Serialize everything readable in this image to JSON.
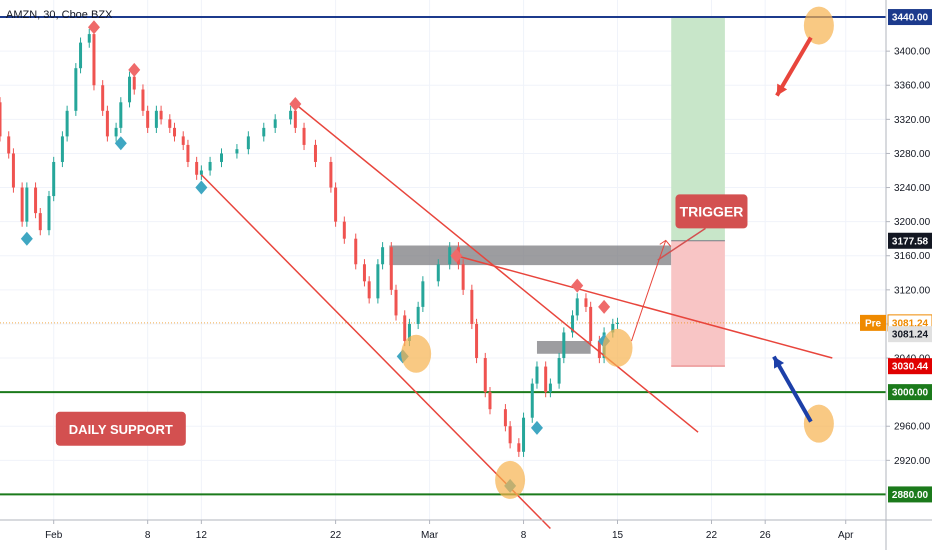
{
  "header": {
    "title": "AMZN, 30, Cboe BZX"
  },
  "chart_data": {
    "type": "candlestick",
    "y_range": [
      2850,
      3460
    ],
    "x_date_range": [
      "2021-01-28",
      "2021-04-04"
    ],
    "x_ticks": [
      {
        "label": "Feb",
        "date": "2021-02-01"
      },
      {
        "label": "8",
        "date": "2021-02-08"
      },
      {
        "label": "12",
        "date": "2021-02-12"
      },
      {
        "label": "22",
        "date": "2021-02-22"
      },
      {
        "label": "Mar",
        "date": "2021-03-01"
      },
      {
        "label": "8",
        "date": "2021-03-08"
      },
      {
        "label": "15",
        "date": "2021-03-15"
      },
      {
        "label": "22",
        "date": "2021-03-22"
      },
      {
        "label": "26",
        "date": "2021-03-26"
      },
      {
        "label": "Apr",
        "date": "2021-04-01"
      }
    ],
    "y_ticks": [
      3400,
      3360,
      3320,
      3280,
      3240,
      3200,
      3160,
      3120,
      3080,
      3040,
      2960,
      2920
    ],
    "y_tick_labels": [
      "3400.00",
      "3360.00",
      "3320.00",
      "3280.00",
      "3240.00",
      "3200.00",
      "3160.00",
      "3120.00",
      "3080.00",
      "3040.00",
      "2960.00",
      "2920.00"
    ],
    "price_tags": [
      {
        "label": "3440.00",
        "value": 3440,
        "bg": "#1c3a8c",
        "fg": "#ffffff"
      },
      {
        "label": "3177.58",
        "value": 3177.58,
        "bg": "#131722",
        "fg": "#ffffff"
      },
      {
        "label": "3081.24",
        "value": 3081.24,
        "bg": "#ffffff",
        "fg": "#ef8a00",
        "border": "#ef8a00",
        "prefix": "Pre"
      },
      {
        "label": "3081.24",
        "value": 3068,
        "bg": "#e0e0e0",
        "fg": "#131722"
      },
      {
        "label": "3030.44",
        "value": 3030.44,
        "bg": "#e00000",
        "fg": "#ffffff"
      },
      {
        "label": "3000.00",
        "value": 3000,
        "bg": "#1b7a1b",
        "fg": "#ffffff"
      },
      {
        "label": "2880.00",
        "value": 2880,
        "bg": "#1b7a1b",
        "fg": "#ffffff"
      }
    ],
    "price_path": [
      [
        "2021-01-28",
        3340
      ],
      [
        "2021-01-28",
        3300
      ],
      [
        "2021-01-29",
        3280
      ],
      [
        "2021-01-29",
        3240
      ],
      [
        "2021-01-30",
        3200
      ],
      [
        "2021-01-30",
        3240
      ],
      [
        "2021-01-31",
        3210
      ],
      [
        "2021-01-31",
        3190
      ],
      [
        "2021-02-01",
        3230
      ],
      [
        "2021-02-01",
        3270
      ],
      [
        "2021-02-02",
        3300
      ],
      [
        "2021-02-02",
        3330
      ],
      [
        "2021-02-03",
        3380
      ],
      [
        "2021-02-03",
        3410
      ],
      [
        "2021-02-04",
        3420
      ],
      [
        "2021-02-04",
        3360
      ],
      [
        "2021-02-05",
        3330
      ],
      [
        "2021-02-05",
        3300
      ],
      [
        "2021-02-06",
        3310
      ],
      [
        "2021-02-06",
        3340
      ],
      [
        "2021-02-07",
        3370
      ],
      [
        "2021-02-07",
        3355
      ],
      [
        "2021-02-08",
        3330
      ],
      [
        "2021-02-08",
        3310
      ],
      [
        "2021-02-09",
        3330
      ],
      [
        "2021-02-09",
        3320
      ],
      [
        "2021-02-10",
        3310
      ],
      [
        "2021-02-10",
        3300
      ],
      [
        "2021-02-11",
        3290
      ],
      [
        "2021-02-11",
        3270
      ],
      [
        "2021-02-12",
        3255
      ],
      [
        "2021-02-12",
        3260
      ],
      [
        "2021-02-13",
        3270
      ],
      [
        "2021-02-14",
        3280
      ],
      [
        "2021-02-15",
        3285
      ],
      [
        "2021-02-16",
        3300
      ],
      [
        "2021-02-17",
        3310
      ],
      [
        "2021-02-18",
        3320
      ],
      [
        "2021-02-19",
        3330
      ],
      [
        "2021-02-19",
        3310
      ],
      [
        "2021-02-20",
        3290
      ],
      [
        "2021-02-21",
        3270
      ],
      [
        "2021-02-22",
        3240
      ],
      [
        "2021-02-22",
        3200
      ],
      [
        "2021-02-23",
        3180
      ],
      [
        "2021-02-24",
        3150
      ],
      [
        "2021-02-24",
        3130
      ],
      [
        "2021-02-25",
        3110
      ],
      [
        "2021-02-25",
        3150
      ],
      [
        "2021-02-26",
        3170
      ],
      [
        "2021-02-26",
        3120
      ],
      [
        "2021-02-27",
        3090
      ],
      [
        "2021-02-27",
        3060
      ],
      [
        "2021-02-28",
        3080
      ],
      [
        "2021-02-28",
        3100
      ],
      [
        "2021-03-01",
        3130
      ],
      [
        "2021-03-02",
        3150
      ],
      [
        "2021-03-03",
        3170
      ],
      [
        "2021-03-03",
        3150
      ],
      [
        "2021-03-04",
        3120
      ],
      [
        "2021-03-04",
        3080
      ],
      [
        "2021-03-05",
        3040
      ],
      [
        "2021-03-05",
        3000
      ],
      [
        "2021-03-06",
        2980
      ],
      [
        "2021-03-07",
        2960
      ],
      [
        "2021-03-07",
        2940
      ],
      [
        "2021-03-08",
        2930
      ],
      [
        "2021-03-08",
        2970
      ],
      [
        "2021-03-09",
        3010
      ],
      [
        "2021-03-09",
        3030
      ],
      [
        "2021-03-10",
        3000
      ],
      [
        "2021-03-10",
        3010
      ],
      [
        "2021-03-11",
        3040
      ],
      [
        "2021-03-11",
        3070
      ],
      [
        "2021-03-12",
        3090
      ],
      [
        "2021-03-12",
        3110
      ],
      [
        "2021-03-13",
        3100
      ],
      [
        "2021-03-13",
        3060
      ],
      [
        "2021-03-14",
        3040
      ],
      [
        "2021-03-14",
        3070
      ],
      [
        "2021-03-15",
        3080
      ],
      [
        "2021-03-15",
        3081.24
      ]
    ],
    "diamonds_top": [
      [
        "2021-02-04",
        3428
      ],
      [
        "2021-02-07",
        3378
      ],
      [
        "2021-02-19",
        3338
      ],
      [
        "2021-03-03",
        3160
      ],
      [
        "2021-03-12",
        3125
      ],
      [
        "2021-03-14",
        3100
      ]
    ],
    "diamonds_bottom": [
      [
        "2021-01-30",
        3180
      ],
      [
        "2021-02-06",
        3292
      ],
      [
        "2021-02-12",
        3240
      ],
      [
        "2021-02-27",
        3042
      ],
      [
        "2021-03-07",
        2890
      ],
      [
        "2021-03-09",
        2958
      ],
      [
        "2021-03-14",
        3060
      ]
    ],
    "horizontal_lines": [
      {
        "value": 3440,
        "color": "#1c3a8c"
      },
      {
        "value": 3000,
        "color": "#1b7a1b"
      },
      {
        "value": 2880,
        "color": "#1b7a1b"
      },
      {
        "value": 3081.24,
        "color": "#ef8a00",
        "dotted": true
      }
    ],
    "trend_lines": [
      {
        "from": [
          "2021-02-19",
          3338
        ],
        "to": [
          "2021-03-21",
          2953
        ]
      },
      {
        "from": [
          "2021-02-12",
          3255
        ],
        "to": [
          "2021-03-10",
          2840
        ]
      },
      {
        "from": [
          "2021-03-03",
          3160
        ],
        "to": [
          "2021-03-31",
          3040
        ]
      }
    ],
    "zones": [
      {
        "from": [
          "2021-02-26",
          3172
        ],
        "to": [
          "2021-03-19",
          3149
        ],
        "color": "#7c7c80"
      },
      {
        "from": [
          "2021-03-09",
          3060
        ],
        "to": [
          "2021-03-13",
          3045
        ],
        "color": "#7c7c80"
      }
    ],
    "trade": {
      "entry": 3177.58,
      "target": 3440,
      "stop": 3030.44,
      "from": "2021-03-19",
      "to": "2021-03-23",
      "profit_color": "#c8e6c9",
      "loss_color": "#f8c5c5"
    },
    "highlight_circles": [
      [
        "2021-02-28",
        3045
      ],
      [
        "2021-03-07",
        2897
      ],
      [
        "2021-03-15",
        3052
      ],
      [
        "2021-03-30",
        3430
      ],
      [
        "2021-03-30",
        2963
      ]
    ],
    "callouts": [
      {
        "text": "TRIGGER",
        "date": "2021-03-22",
        "value": 3212,
        "color": "#d35050"
      },
      {
        "text": "DAILY SUPPORT",
        "date": "2021-02-06",
        "value": 2957,
        "color": "#d35050"
      }
    ]
  }
}
